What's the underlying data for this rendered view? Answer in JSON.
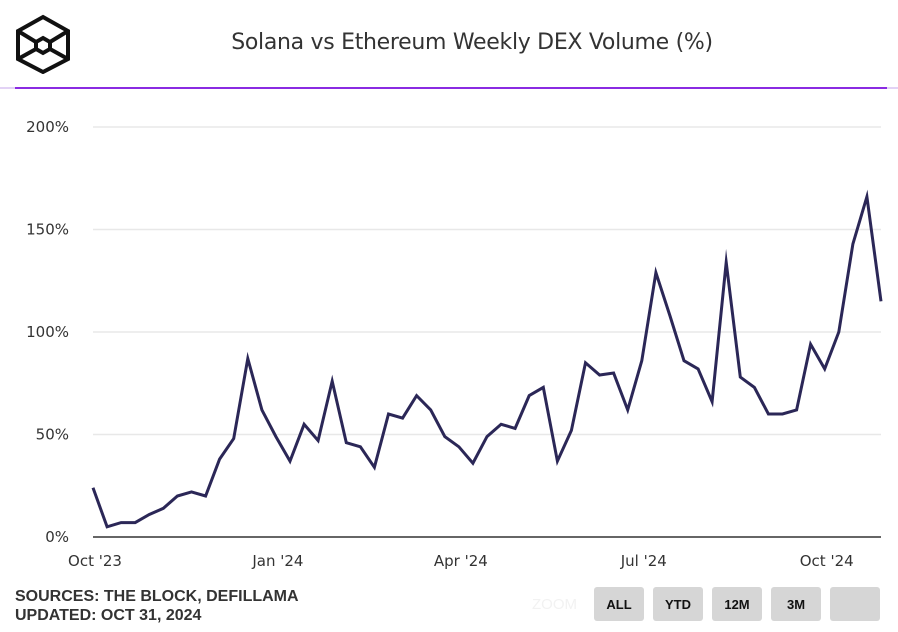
{
  "header": {
    "title": "Solana vs Ethereum Weekly DEX Volume (%)",
    "logo": "the-block-cube-logo",
    "accent_color": "#8a2be2"
  },
  "footer": {
    "sources": "SOURCES: THE BLOCK, DEFILLAMA",
    "updated": "UPDATED: OCT 31, 2024"
  },
  "zoom_controls": {
    "label": "ZOOM",
    "buttons": [
      "ALL",
      "YTD",
      "12M",
      "3M",
      ""
    ]
  },
  "chart_data": {
    "type": "line",
    "title": "Solana vs Ethereum Weekly DEX Volume (%)",
    "xlabel": "",
    "ylabel": "",
    "ylim": [
      0,
      200
    ],
    "yticks": [
      0,
      50,
      100,
      150,
      200
    ],
    "ytick_labels": [
      "0%",
      "50%",
      "100%",
      "150%",
      "200%"
    ],
    "xtick_labels": [
      "Oct '23",
      "Jan '24",
      "Apr '24",
      "Jul '24",
      "Oct '24"
    ],
    "xtick_week_index": [
      0,
      13,
      26,
      39,
      52
    ],
    "grid": true,
    "legend": "none",
    "line_color": "#2b2757",
    "x_unit": "week index from Oct '23",
    "series": [
      {
        "name": "Solana / Ethereum weekly DEX volume (%)",
        "values": [
          24,
          5,
          7,
          7,
          11,
          14,
          20,
          22,
          20,
          38,
          48,
          87,
          62,
          49,
          37,
          55,
          47,
          76,
          46,
          44,
          34,
          60,
          58,
          69,
          62,
          49,
          44,
          36,
          49,
          55,
          53,
          69,
          73,
          37,
          52,
          85,
          79,
          80,
          62,
          86,
          129,
          108,
          86,
          82,
          66,
          134,
          78,
          73,
          60,
          60,
          62,
          94,
          82,
          100,
          143,
          166,
          115
        ]
      }
    ]
  }
}
